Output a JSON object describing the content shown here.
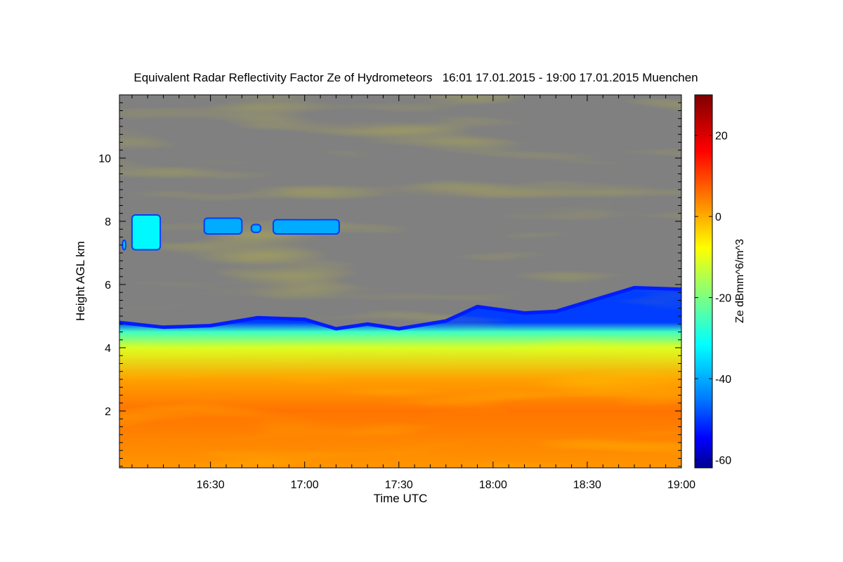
{
  "chart_data": {
    "type": "heatmap",
    "title": "Equivalent Radar Reflectivity Factor Ze of Hydrometeors   16:01 17.01.2015 - 19:00 17.01.2015 Muenchen",
    "xlabel": "Time UTC",
    "ylabel": "Height AGL km",
    "x_range": [
      "16:01",
      "19:00"
    ],
    "x_ticks": [
      "16:30",
      "17:00",
      "17:30",
      "18:00",
      "18:30",
      "19:00"
    ],
    "y_range": [
      0.2,
      12.0
    ],
    "y_ticks": [
      2,
      4,
      6,
      8,
      10
    ],
    "no_echo_color": "#808080",
    "colorbar": {
      "label": "Ze dBmm^6/m^3",
      "range": [
        -62,
        30
      ],
      "ticks": [
        -60,
        -40,
        -20,
        0,
        20
      ],
      "colors": [
        "#00008f",
        "#0000ff",
        "#007fff",
        "#00ffff",
        "#7fff7f",
        "#ffff00",
        "#ff7f00",
        "#ff0000",
        "#7f0000"
      ]
    },
    "echo_top_km": [
      {
        "time": "16:01",
        "height": 4.8
      },
      {
        "time": "16:15",
        "height": 4.65
      },
      {
        "time": "16:30",
        "height": 4.7
      },
      {
        "time": "16:45",
        "height": 4.95
      },
      {
        "time": "17:00",
        "height": 4.9
      },
      {
        "time": "17:10",
        "height": 4.6
      },
      {
        "time": "17:20",
        "height": 4.75
      },
      {
        "time": "17:30",
        "height": 4.6
      },
      {
        "time": "17:45",
        "height": 4.85
      },
      {
        "time": "17:55",
        "height": 5.3
      },
      {
        "time": "18:10",
        "height": 5.1
      },
      {
        "time": "18:20",
        "height": 5.15
      },
      {
        "time": "18:30",
        "height": 5.45
      },
      {
        "time": "18:45",
        "height": 5.9
      },
      {
        "time": "19:00",
        "height": 5.85
      }
    ],
    "cirrus_patches": [
      {
        "start": "16:02",
        "end": "16:03",
        "bottom_km": 7.1,
        "top_km": 7.4,
        "ze_dbz": -32
      },
      {
        "start": "16:05",
        "end": "16:14",
        "bottom_km": 7.1,
        "top_km": 8.2,
        "ze_dbz": -28
      },
      {
        "start": "16:28",
        "end": "16:40",
        "bottom_km": 7.6,
        "top_km": 8.1,
        "ze_dbz": -35
      },
      {
        "start": "16:43",
        "end": "16:46",
        "bottom_km": 7.65,
        "top_km": 7.9,
        "ze_dbz": -35
      },
      {
        "start": "16:50",
        "end": "17:11",
        "bottom_km": 7.6,
        "top_km": 8.05,
        "ze_dbz": -35
      }
    ],
    "ze_profile_dbz": [
      {
        "height": 0.2,
        "ze": 5
      },
      {
        "height": 2.0,
        "ze": 8
      },
      {
        "height": 3.0,
        "ze": 4
      },
      {
        "height": 4.0,
        "ze": -8
      },
      {
        "height": 4.5,
        "ze": -22
      },
      {
        "height": 4.8,
        "ze": -45
      }
    ]
  }
}
